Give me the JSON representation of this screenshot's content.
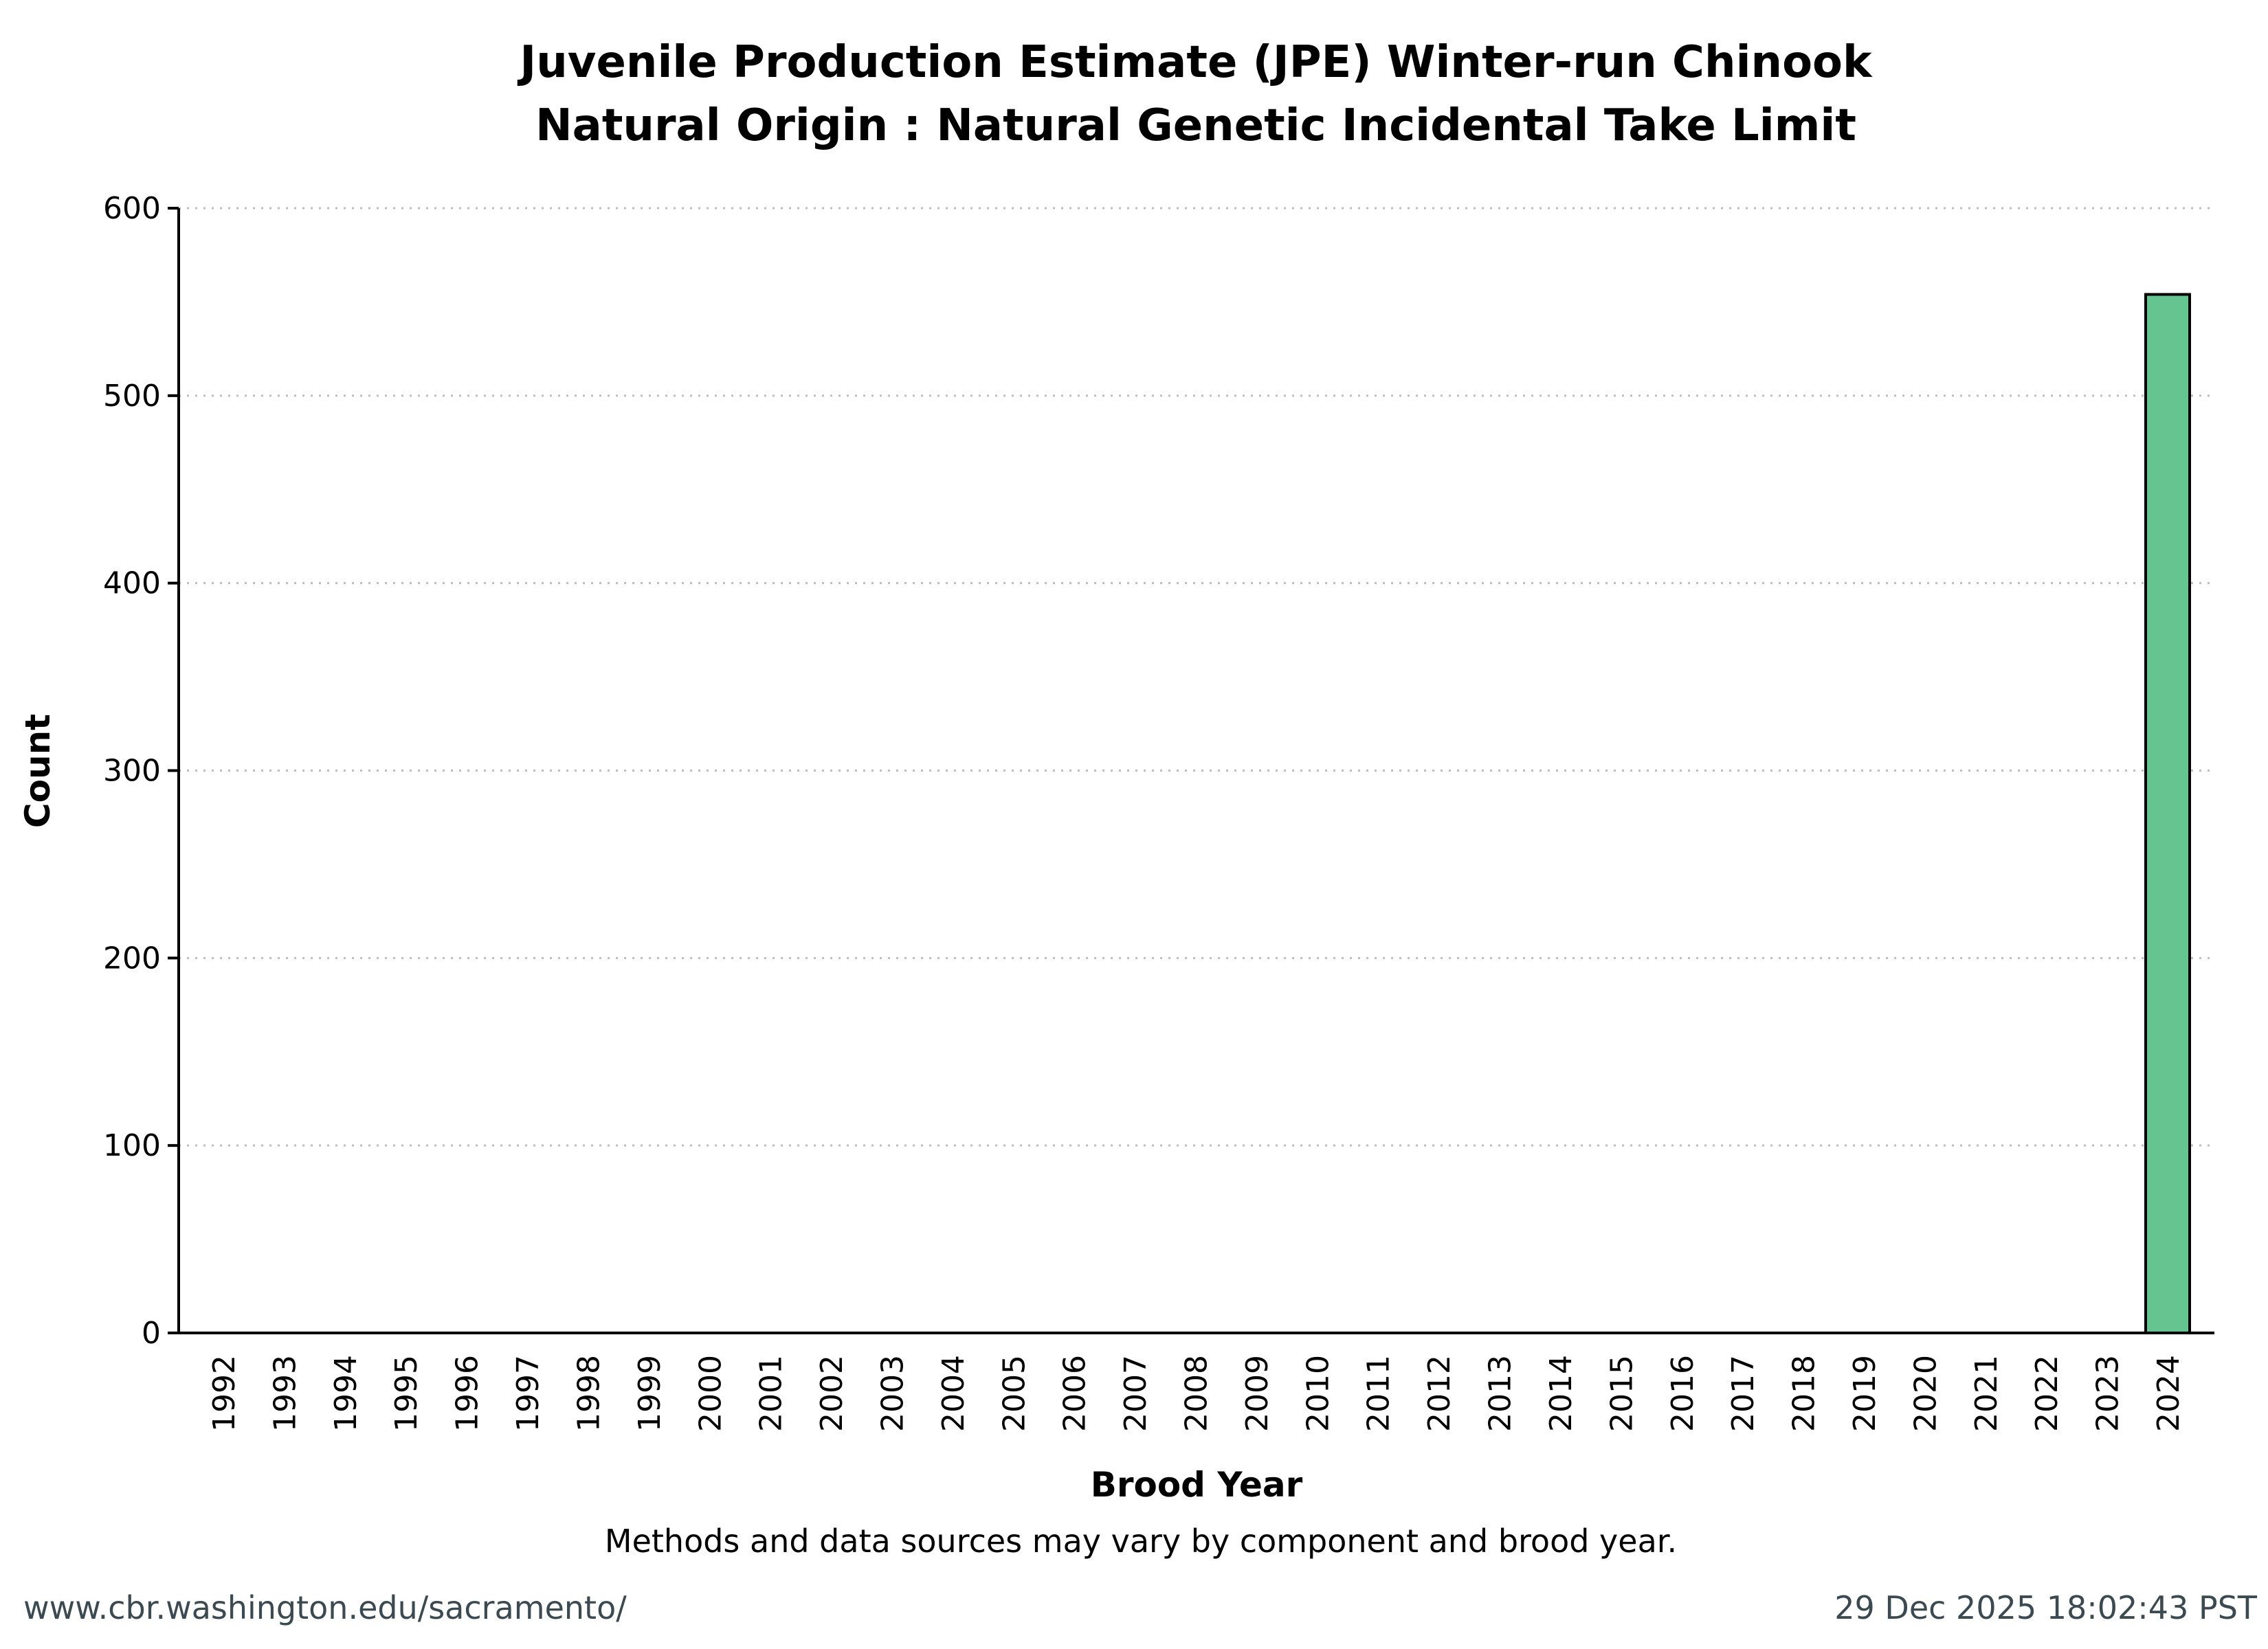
{
  "chart_data": {
    "type": "bar",
    "title_lines": [
      "Juvenile Production Estimate (JPE) Winter-run Chinook",
      "Natural Origin : Natural Genetic Incidental Take Limit"
    ],
    "xlabel": "Brood Year",
    "ylabel": "Count",
    "ylim": [
      0,
      600
    ],
    "yticks": [
      0,
      100,
      200,
      300,
      400,
      500,
      600
    ],
    "grid": "horizontal-dotted",
    "categories": [
      "1992",
      "1993",
      "1994",
      "1995",
      "1996",
      "1997",
      "1998",
      "1999",
      "2000",
      "2001",
      "2002",
      "2003",
      "2004",
      "2005",
      "2006",
      "2007",
      "2008",
      "2009",
      "2010",
      "2011",
      "2012",
      "2013",
      "2014",
      "2015",
      "2016",
      "2017",
      "2018",
      "2019",
      "2020",
      "2021",
      "2022",
      "2023",
      "2024"
    ],
    "values": [
      0,
      0,
      0,
      0,
      0,
      0,
      0,
      0,
      0,
      0,
      0,
      0,
      0,
      0,
      0,
      0,
      0,
      0,
      0,
      0,
      0,
      0,
      0,
      0,
      0,
      0,
      0,
      0,
      0,
      0,
      0,
      0,
      554
    ],
    "bar_color": "#66c490"
  },
  "note": "Methods and data sources may vary by component and brood year.",
  "footer": {
    "url": "www.cbr.washington.edu/sacramento/",
    "timestamp": "29 Dec 2025 18:02:43 PST"
  }
}
